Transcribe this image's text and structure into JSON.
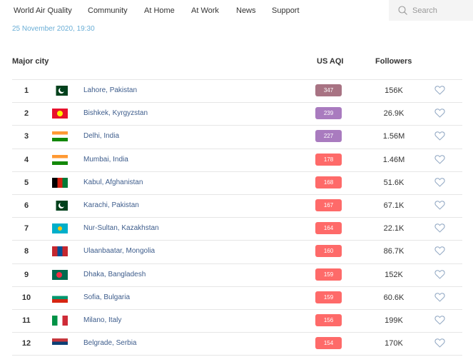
{
  "nav": {
    "items": [
      "World Air Quality",
      "Community",
      "At Home",
      "At Work",
      "News",
      "Support"
    ],
    "search_placeholder": "Search"
  },
  "timestamp": "25 November 2020, 19:30",
  "table": {
    "headers": {
      "city": "Major city",
      "aqi": "US AQI",
      "followers": "Followers"
    },
    "rows": [
      {
        "rank": "1",
        "city": "Lahore, Pakistan",
        "flag": "pakistan",
        "aqi": "347",
        "aqi_color": "#a87383",
        "followers": "156K"
      },
      {
        "rank": "2",
        "city": "Bishkek, Kyrgyzstan",
        "flag": "kyrgyzstan",
        "aqi": "239",
        "aqi_color": "#a97bbf",
        "followers": "26.9K"
      },
      {
        "rank": "3",
        "city": "Delhi, India",
        "flag": "india",
        "aqi": "227",
        "aqi_color": "#a97bbf",
        "followers": "1.56M"
      },
      {
        "rank": "4",
        "city": "Mumbai, India",
        "flag": "india",
        "aqi": "178",
        "aqi_color": "#fe6a69",
        "followers": "1.46M"
      },
      {
        "rank": "5",
        "city": "Kabul, Afghanistan",
        "flag": "afghanistan",
        "aqi": "168",
        "aqi_color": "#fe6a69",
        "followers": "51.6K"
      },
      {
        "rank": "6",
        "city": "Karachi, Pakistan",
        "flag": "pakistan",
        "aqi": "167",
        "aqi_color": "#fe6a69",
        "followers": "67.1K"
      },
      {
        "rank": "7",
        "city": "Nur-Sultan, Kazakhstan",
        "flag": "kazakhstan",
        "aqi": "164",
        "aqi_color": "#fe6a69",
        "followers": "22.1K"
      },
      {
        "rank": "8",
        "city": "Ulaanbaatar, Mongolia",
        "flag": "mongolia",
        "aqi": "160",
        "aqi_color": "#fe6a69",
        "followers": "86.7K"
      },
      {
        "rank": "9",
        "city": "Dhaka, Bangladesh",
        "flag": "bangladesh",
        "aqi": "159",
        "aqi_color": "#fe6a69",
        "followers": "152K"
      },
      {
        "rank": "10",
        "city": "Sofia, Bulgaria",
        "flag": "bulgaria",
        "aqi": "159",
        "aqi_color": "#fe6a69",
        "followers": "60.6K"
      },
      {
        "rank": "11",
        "city": "Milano, Italy",
        "flag": "italy",
        "aqi": "156",
        "aqi_color": "#fe6a69",
        "followers": "199K"
      },
      {
        "rank": "12",
        "city": "Belgrade, Serbia",
        "flag": "serbia",
        "aqi": "154",
        "aqi_color": "#fe6a69",
        "followers": "170K"
      }
    ]
  }
}
